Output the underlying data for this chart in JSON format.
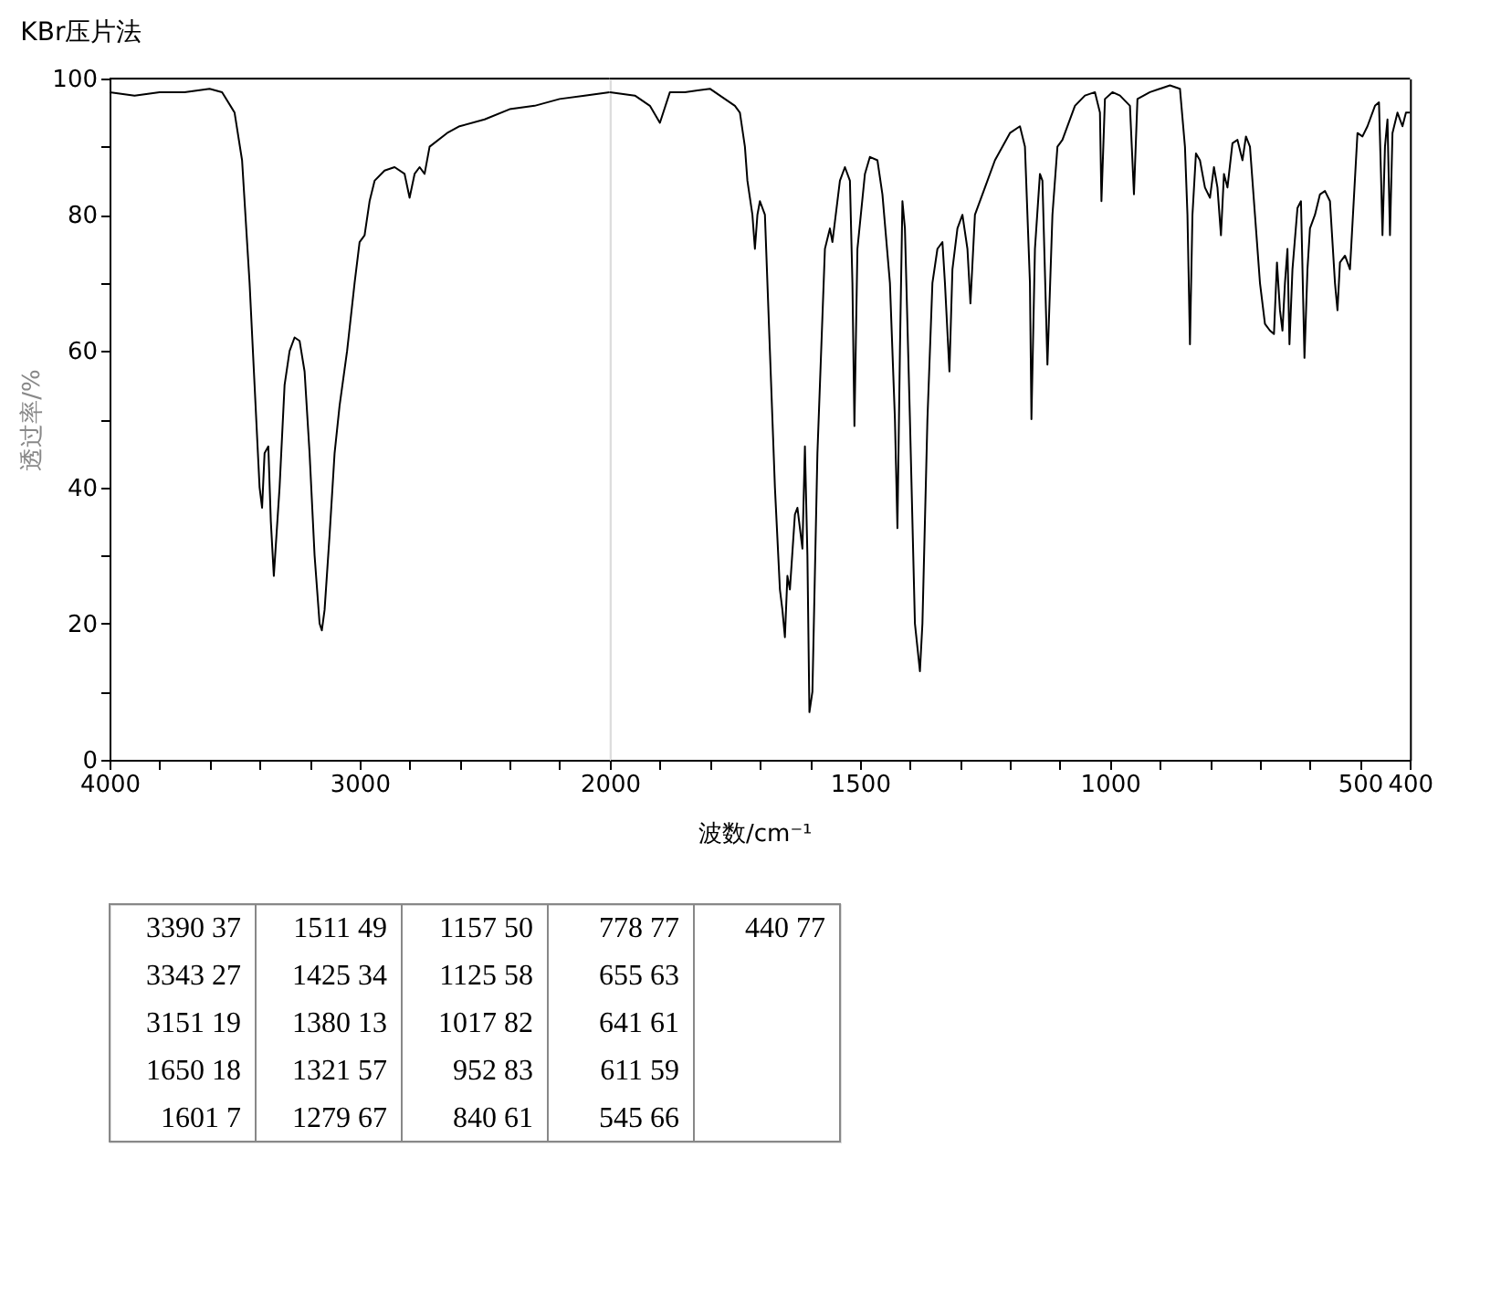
{
  "chart_data": [
    {
      "type": "line",
      "title": "KBr压片法",
      "ylabel": "透过率/%",
      "x": [
        4000,
        3900,
        3800,
        3700,
        3600,
        3550,
        3500,
        3470,
        3440,
        3420,
        3400,
        3390,
        3380,
        3365,
        3355,
        3343,
        3320,
        3300,
        3280,
        3260,
        3240,
        3220,
        3200,
        3180,
        3160,
        3151,
        3140,
        3120,
        3100,
        3080,
        3050,
        3020,
        3000,
        2980,
        2960,
        2940,
        2900,
        2860,
        2820,
        2800,
        2780,
        2760,
        2740,
        2720,
        2650,
        2600,
        2500,
        2400,
        2300,
        2200,
        2100,
        2000
      ],
      "series": [
        {
          "color": "#000000",
          "values": [
            98,
            97.5,
            98,
            98,
            98.5,
            98,
            95,
            88,
            70,
            55,
            40,
            37,
            45,
            46,
            35,
            27,
            40,
            55,
            60,
            62,
            61.5,
            57,
            45,
            30,
            20,
            19,
            22,
            33,
            45,
            52,
            60,
            70,
            76,
            77,
            82,
            85,
            86.5,
            87,
            86,
            82.5,
            86,
            87,
            86,
            90,
            92,
            93,
            94,
            95.5,
            96,
            97,
            97.5,
            98
          ]
        }
      ],
      "xlim": [
        4000,
        2000
      ],
      "xticks": [
        4000,
        {
          "value": 3800,
          "label": null
        },
        {
          "value": 3600,
          "label": null
        },
        {
          "value": 3400,
          "label": null
        },
        {
          "value": 3200,
          "label": null
        },
        3000,
        {
          "value": 2800,
          "label": null
        },
        {
          "value": 2600,
          "label": null
        },
        {
          "value": 2400,
          "label": null
        },
        {
          "value": 2200,
          "label": null
        },
        {
          "value": 2000,
          "label": null
        }
      ],
      "ylim": [
        0,
        100
      ],
      "yticks": [
        0,
        {
          "value": 10,
          "label": null
        },
        20,
        {
          "value": 30,
          "label": null
        },
        40,
        {
          "value": 50,
          "label": null
        },
        60,
        {
          "value": 70,
          "label": null
        },
        80,
        {
          "value": 90,
          "label": null
        },
        100
      ],
      "grid": false,
      "line_style": "solid"
    },
    {
      "type": "line",
      "xlabel": "波数/cm⁻¹",
      "x": [
        2000,
        1950,
        1920,
        1900,
        1880,
        1850,
        1800,
        1770,
        1750,
        1740,
        1730,
        1725,
        1715,
        1710,
        1705,
        1700,
        1690,
        1680,
        1670,
        1660,
        1655,
        1650,
        1645,
        1640,
        1630,
        1625,
        1615,
        1610,
        1605,
        1601,
        1595,
        1585,
        1570,
        1560,
        1555,
        1550,
        1540,
        1530,
        1520,
        1515,
        1511,
        1505,
        1490,
        1480,
        1465,
        1455,
        1440,
        1430,
        1425,
        1420,
        1415,
        1410,
        1400,
        1390,
        1380,
        1375,
        1365,
        1355,
        1345,
        1335,
        1330,
        1321,
        1315,
        1305,
        1295,
        1285,
        1279,
        1270,
        1250,
        1230,
        1200,
        1180,
        1170,
        1160,
        1157,
        1150,
        1140,
        1135,
        1125,
        1115,
        1105,
        1095,
        1070,
        1050,
        1030,
        1020,
        1017,
        1010,
        995,
        980,
        960,
        952,
        945,
        920,
        880,
        860,
        850,
        845,
        840,
        835,
        828,
        820,
        810,
        800,
        792,
        785,
        778,
        772,
        765,
        755,
        745,
        735,
        728,
        720,
        710,
        700,
        690,
        680,
        672,
        666,
        660,
        655,
        650,
        645,
        641,
        635,
        625,
        618,
        611,
        605,
        600,
        590,
        580,
        570,
        560,
        555,
        550,
        545,
        540,
        530,
        520,
        505,
        495,
        485,
        470,
        462,
        458,
        455,
        450,
        445,
        440,
        435,
        425,
        415,
        408,
        400
      ],
      "series": [
        {
          "color": "#000000",
          "values": [
            98,
            97.5,
            96,
            93.5,
            98,
            98,
            98.5,
            97,
            96,
            95,
            90,
            85,
            80,
            75,
            80,
            82,
            80,
            60,
            40,
            25,
            22,
            18,
            27,
            25,
            36,
            37,
            31,
            46,
            30,
            7,
            10,
            45,
            75,
            78,
            76,
            79,
            85,
            87,
            85,
            70,
            49,
            75,
            86,
            88.5,
            88,
            83,
            70,
            50,
            34,
            60,
            82,
            78,
            50,
            20,
            13,
            20,
            50,
            70,
            75,
            76,
            70,
            57,
            72,
            78,
            80,
            75,
            67,
            80,
            84,
            88,
            92,
            93,
            90,
            70,
            50,
            75,
            86,
            85,
            58,
            80,
            90,
            91,
            96,
            97.5,
            98,
            95,
            82,
            97,
            98,
            97.5,
            96,
            83,
            97,
            98,
            99,
            98.5,
            90,
            80,
            61,
            80,
            89,
            88,
            84,
            82.5,
            87,
            84,
            77,
            86,
            84,
            90.5,
            91,
            88,
            91.5,
            90,
            80,
            70,
            64,
            63,
            62.5,
            73,
            66,
            63,
            70,
            75,
            61,
            72,
            81,
            82,
            59,
            72,
            78,
            80,
            83,
            83.5,
            82,
            76,
            70,
            66,
            73,
            74,
            72,
            92,
            91.5,
            93,
            96,
            96.5,
            86,
            77,
            90,
            94,
            77,
            92,
            95,
            93,
            95,
            95
          ]
        }
      ],
      "xlim": [
        2000,
        400
      ],
      "xticks": [
        2000,
        {
          "value": 1900,
          "label": null
        },
        {
          "value": 1800,
          "label": null
        },
        {
          "value": 1700,
          "label": null
        },
        {
          "value": 1600,
          "label": null
        },
        1500,
        {
          "value": 1400,
          "label": null
        },
        {
          "value": 1300,
          "label": null
        },
        {
          "value": 1200,
          "label": null
        },
        {
          "value": 1100,
          "label": null
        },
        1000,
        {
          "value": 900,
          "label": null
        },
        {
          "value": 800,
          "label": null
        },
        {
          "value": 700,
          "label": null
        },
        {
          "value": 600,
          "label": null
        },
        500,
        400
      ],
      "ylim": [
        0,
        100
      ],
      "tick_labels": "x",
      "grid": false,
      "line_style": "solid",
      "annotations": [
        "3390 37",
        "3343 27",
        "3151 19",
        "1650 18",
        "1601 7",
        "1511 49",
        "1425 34",
        "1380 13",
        "1321 57",
        "1279 67",
        "1157 50",
        "1125 58",
        "1017 82",
        "952 83",
        "840 61",
        "778 77",
        "655 63",
        "641 61",
        "611 59",
        "545 66",
        "440 77"
      ]
    }
  ]
}
